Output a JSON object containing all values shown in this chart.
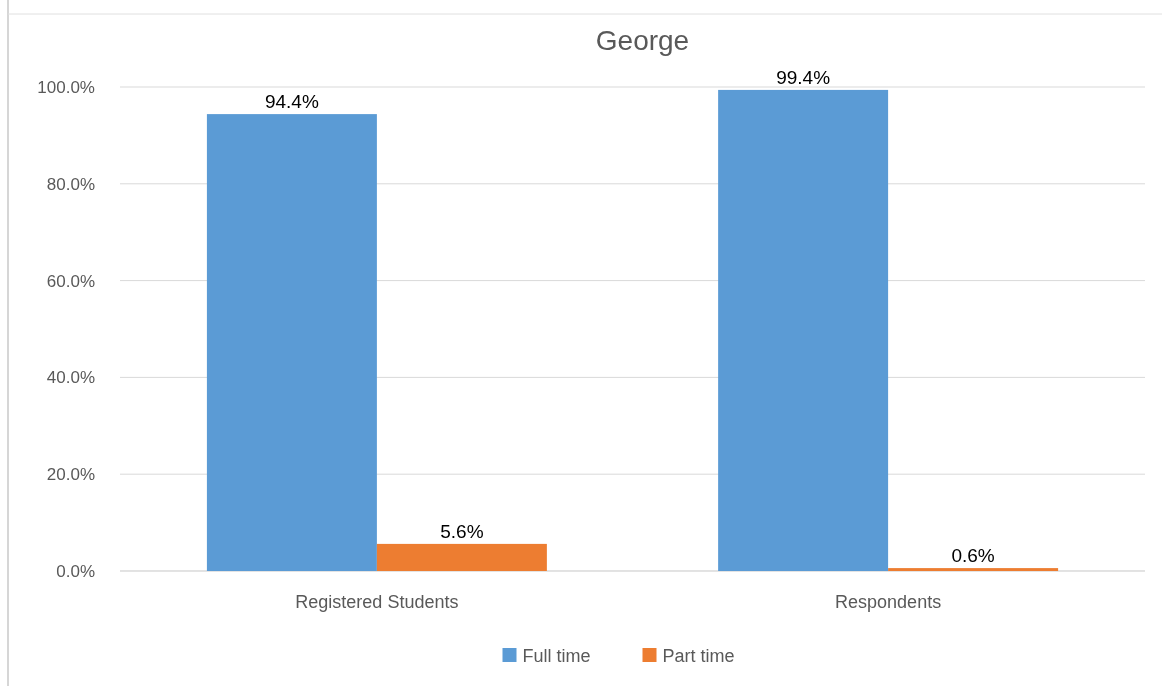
{
  "chart_data": {
    "type": "bar",
    "title": "George",
    "categories": [
      "Registered Students",
      "Respondents"
    ],
    "series": [
      {
        "name": "Full time",
        "color": "#5b9bd5",
        "values": [
          94.4,
          99.4
        ],
        "value_labels": [
          "94.4%",
          "99.4%"
        ]
      },
      {
        "name": "Part time",
        "color": "#ed7d31",
        "values": [
          5.6,
          0.6
        ],
        "value_labels": [
          "5.6%",
          "0.6%"
        ]
      }
    ],
    "ylim": [
      0,
      100
    ],
    "yticks": [
      {
        "value": 0,
        "label": "0.0%"
      },
      {
        "value": 20,
        "label": "20.0%"
      },
      {
        "value": 40,
        "label": "40.0%"
      },
      {
        "value": 60,
        "label": "60.0%"
      },
      {
        "value": 80,
        "label": "80.0%"
      },
      {
        "value": 100,
        "label": "100.0%"
      }
    ],
    "grid": "y",
    "legend": "bottom"
  }
}
